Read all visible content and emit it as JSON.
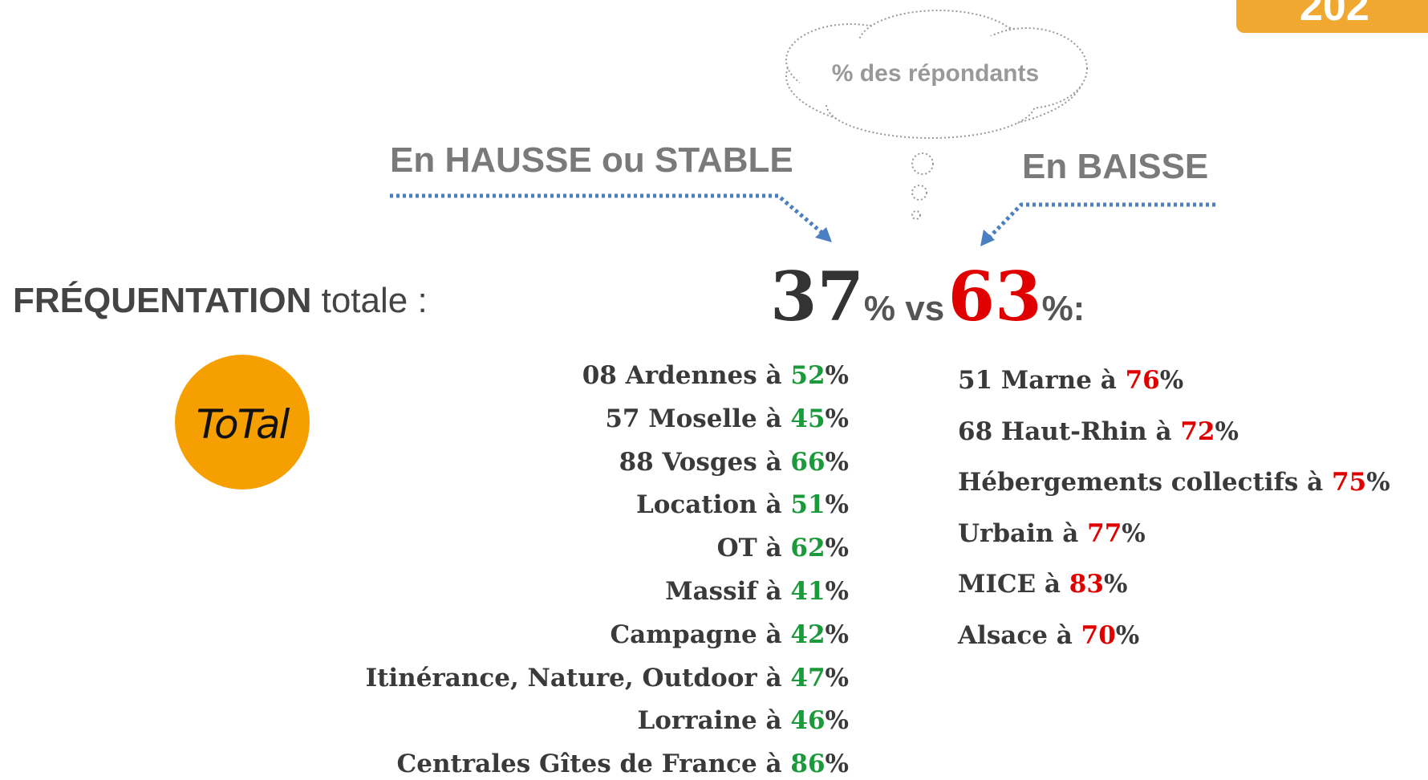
{
  "badge": "202",
  "cloud": "% des répondants",
  "up_label": "En HAUSSE ou STABLE",
  "down_label": "En BAISSE",
  "headline": {
    "label_bold": "FRÉQUENTATION",
    "label_rest": "totale :",
    "up_value": "37",
    "middle": "% vs",
    "down_value": "63",
    "end": "%:"
  },
  "logo": "ToTal",
  "up_items": [
    {
      "label": "08 Ardennes à",
      "value": "52",
      "unit": "%"
    },
    {
      "label": "57 Moselle à",
      "value": "45",
      "unit": "%"
    },
    {
      "label": "88 Vosges à",
      "value": "66",
      "unit": "%"
    },
    {
      "label": "Location à",
      "value": "51",
      "unit": "%"
    },
    {
      "label": "OT à",
      "value": "62",
      "unit": "%"
    },
    {
      "label": "Massif à",
      "value": "41",
      "unit": "%"
    },
    {
      "label": "Campagne à",
      "value": "42",
      "unit": "%"
    },
    {
      "label": "Itinérance, Nature, Outdoor à",
      "value": "47",
      "unit": "%"
    },
    {
      "label": "Lorraine à",
      "value": "46",
      "unit": "%"
    },
    {
      "label": "Centrales Gîtes de France à",
      "value": "86",
      "unit": "%"
    }
  ],
  "down_items": [
    {
      "label": "51 Marne à",
      "value": "76",
      "unit": "%"
    },
    {
      "label": "68 Haut-Rhin à",
      "value": "72",
      "unit": "%"
    },
    {
      "label": "Hébergements collectifs à",
      "value": "75",
      "unit": "%"
    },
    {
      "label": "Urbain à",
      "value": "77",
      "unit": "%"
    },
    {
      "label": "MICE à",
      "value": "83",
      "unit": "%"
    },
    {
      "label": "Alsace à",
      "value": "70",
      "unit": "%"
    }
  ]
}
